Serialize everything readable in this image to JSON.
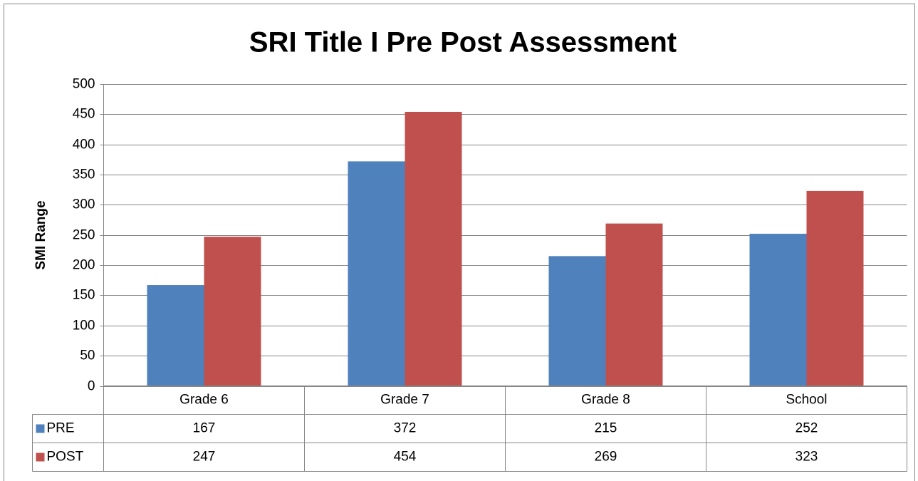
{
  "chart_data": {
    "type": "bar",
    "title": "SRI Title I Pre Post Assessment",
    "y_label": "SMI Range",
    "categories": [
      "Grade 6",
      "Grade 7",
      "Grade 8",
      "School"
    ],
    "series": [
      {
        "name": "PRE",
        "color": "#4f81bd",
        "values": [
          167,
          372,
          215,
          252
        ]
      },
      {
        "name": "POST",
        "color": "#c0504d",
        "values": [
          247,
          454,
          269,
          323
        ]
      }
    ],
    "ylim": [
      0,
      500
    ],
    "yticks": [
      0,
      50,
      100,
      150,
      200,
      250,
      300,
      350,
      400,
      450,
      500
    ],
    "grid": true,
    "legend": "data-table"
  }
}
